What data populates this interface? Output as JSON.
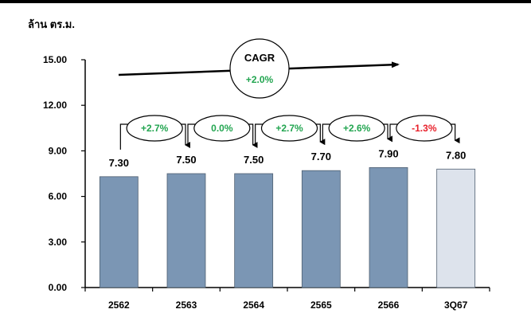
{
  "chart_data": {
    "type": "bar",
    "unit_label": "ล้าน ตร.ม.",
    "categories": [
      "2562",
      "2563",
      "2564",
      "2565",
      "2566",
      "3Q67"
    ],
    "values": [
      7.3,
      7.5,
      7.5,
      7.7,
      7.9,
      7.8
    ],
    "value_labels": [
      "7.30",
      "7.50",
      "7.50",
      "7.70",
      "7.90",
      "7.80"
    ],
    "ylim": [
      0,
      15
    ],
    "yticks": [
      "0.00",
      "3.00",
      "6.00",
      "9.00",
      "12.00",
      "15.00"
    ],
    "bar_colors": [
      "#7b96b4",
      "#7b96b4",
      "#7b96b4",
      "#7b96b4",
      "#7b96b4",
      "#dde3ec"
    ],
    "growth": [
      "+2.7%",
      "0.0%",
      "+2.7%",
      "+2.6%",
      "-1.3%"
    ],
    "growth_colors": [
      "#22a550",
      "#22a550",
      "#22a550",
      "#22a550",
      "#e8202a"
    ],
    "cagr_label": "CAGR",
    "cagr_value": "+2.0%",
    "cagr_color": "#22a550",
    "grid": false
  }
}
